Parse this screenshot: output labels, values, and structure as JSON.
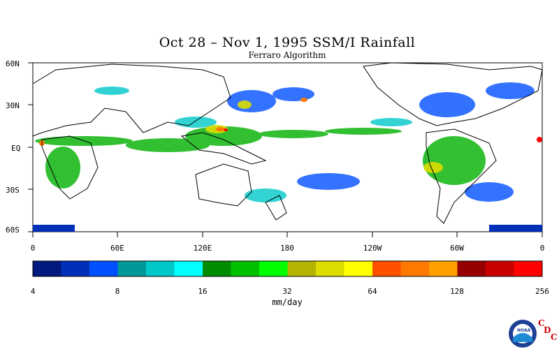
{
  "title": "Oct 28 – Nov 1, 1995 SSM/I Rainfall",
  "subtitle": "Ferraro Algorithm",
  "lat_labels": [
    "60N",
    "30N",
    "EQ",
    "30S",
    "60S"
  ],
  "lon_labels": [
    "0",
    "60E",
    "120E",
    "180",
    "120W",
    "60W",
    "0"
  ],
  "colorbar": {
    "colors": [
      "#001a80",
      "#0030b8",
      "#0050ff",
      "#009999",
      "#00c8c8",
      "#00ffff",
      "#008c00",
      "#00c000",
      "#00ff00",
      "#b4b400",
      "#dcdc00",
      "#ffff00",
      "#ff5000",
      "#ff7800",
      "#ffa000",
      "#960000",
      "#c80000",
      "#ff0000"
    ],
    "tick_labels": [
      "4",
      "8",
      "16",
      "32",
      "64",
      "128",
      "256"
    ],
    "units": "mm/day"
  },
  "logo": {
    "emblem_text": "NOAA",
    "org_letters": [
      "C",
      "D",
      "C"
    ]
  }
}
